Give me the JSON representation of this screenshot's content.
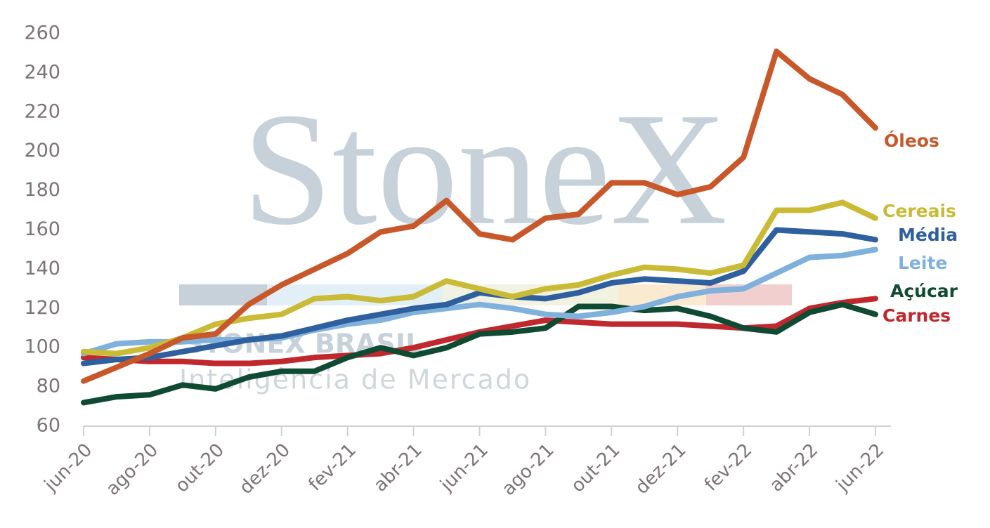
{
  "chart_data": {
    "type": "line",
    "watermark": {
      "brand": "StoneX",
      "company": "STONEX BRASIL",
      "tagline": "Inteligência de Mercado"
    },
    "categories": [
      "jun-20",
      null,
      "ago-20",
      null,
      "out-20",
      null,
      "dez-20",
      null,
      "fev-21",
      null,
      "abr-21",
      null,
      "jun-21",
      null,
      "ago-21",
      null,
      "out-21",
      null,
      "dez-21",
      null,
      "fev-22",
      null,
      "abr-22",
      null,
      "jun-22"
    ],
    "ylim": [
      60,
      260
    ],
    "yticks": [
      60,
      80,
      100,
      120,
      140,
      160,
      180,
      200,
      220,
      240,
      260
    ],
    "series": [
      {
        "name": "Óleos",
        "color": "#c8582a",
        "values": [
          83,
          90,
          97,
          105,
          107,
          122,
          132,
          140,
          148,
          159,
          162,
          175,
          158,
          155,
          166,
          168,
          184,
          184,
          178,
          182,
          197,
          251,
          237,
          229,
          212
        ]
      },
      {
        "name": "Cereais",
        "color": "#c9bb35",
        "values": [
          98,
          97,
          100,
          105,
          112,
          115,
          117,
          125,
          126,
          124,
          126,
          134,
          130,
          126,
          130,
          132,
          137,
          141,
          140,
          138,
          142,
          170,
          170,
          174,
          166
        ]
      },
      {
        "name": "Média",
        "color": "#2e5f9e",
        "values": [
          92,
          94,
          95,
          98,
          101,
          104,
          106,
          110,
          114,
          117,
          120,
          122,
          128,
          126,
          125,
          128,
          133,
          135,
          134,
          133,
          139,
          160,
          159,
          158,
          155
        ]
      },
      {
        "name": "Leite",
        "color": "#7fb1dc",
        "values": [
          97,
          102,
          103,
          103,
          104,
          104,
          105,
          109,
          112,
          114,
          118,
          120,
          122,
          120,
          117,
          116,
          118,
          121,
          126,
          129,
          130,
          138,
          146,
          147,
          150
        ]
      },
      {
        "name": "Açúcar",
        "color": "#0f4a32",
        "values": [
          72,
          75,
          76,
          81,
          79,
          85,
          88,
          88,
          95,
          100,
          96,
          100,
          107,
          108,
          110,
          121,
          121,
          119,
          120,
          116,
          110,
          108,
          118,
          122,
          117
        ]
      },
      {
        "name": "Carnes",
        "color": "#c0282e",
        "values": [
          95,
          94,
          93,
          93,
          92,
          92,
          93,
          95,
          96,
          97,
          100,
          104,
          108,
          111,
          114,
          113,
          112,
          112,
          112,
          111,
          110,
          111,
          120,
          123,
          125
        ]
      }
    ]
  }
}
